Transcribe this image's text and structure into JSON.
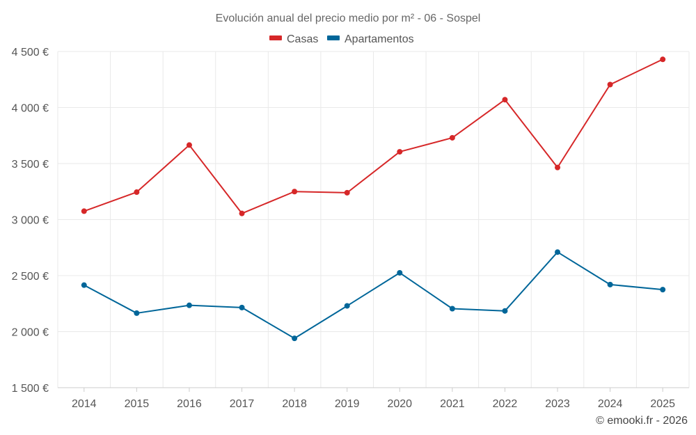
{
  "chart_data": {
    "type": "line",
    "title": "Evolución anual del precio medio por m² - 06 - Sospel",
    "categories": [
      "2014",
      "2015",
      "2016",
      "2017",
      "2018",
      "2019",
      "2020",
      "2021",
      "2022",
      "2023",
      "2024",
      "2025"
    ],
    "ylim": [
      1500,
      4500
    ],
    "yticks": [
      1500,
      2000,
      2500,
      3000,
      3500,
      4000,
      4500
    ],
    "ytick_labels": [
      "1 500 €",
      "2 000 €",
      "2 500 €",
      "3 000 €",
      "3 500 €",
      "4 000 €",
      "4 500 €"
    ],
    "series": [
      {
        "name": "Casas",
        "color": "#d62728",
        "values": [
          3075,
          3245,
          3665,
          3055,
          3250,
          3240,
          3605,
          3730,
          4070,
          3465,
          4205,
          4430
        ]
      },
      {
        "name": "Apartamentos",
        "color": "#006699",
        "values": [
          2415,
          2165,
          2235,
          2215,
          1940,
          2230,
          2525,
          2205,
          2185,
          2710,
          2420,
          2375
        ]
      }
    ],
    "grid": true,
    "legend_position": "top-center"
  },
  "credit": "© emooki.fr - 2026"
}
